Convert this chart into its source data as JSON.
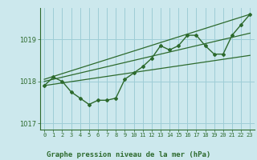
{
  "title": "Graphe pression niveau de la mer (hPa)",
  "background_color": "#cce8ed",
  "grid_color": "#9ecdd6",
  "line_color": "#2d6a2d",
  "xlim": [
    -0.5,
    23.5
  ],
  "ylim": [
    1016.85,
    1019.75
  ],
  "yticks": [
    1017,
    1018,
    1019
  ],
  "xticks": [
    0,
    1,
    2,
    3,
    4,
    5,
    6,
    7,
    8,
    9,
    10,
    11,
    12,
    13,
    14,
    15,
    16,
    17,
    18,
    19,
    20,
    21,
    22,
    23
  ],
  "hours": [
    0,
    1,
    2,
    3,
    4,
    5,
    6,
    7,
    8,
    9,
    10,
    11,
    12,
    13,
    14,
    15,
    16,
    17,
    18,
    19,
    20,
    21,
    22,
    23
  ],
  "pressure": [
    1017.9,
    1018.1,
    1018.0,
    1017.75,
    1017.6,
    1017.45,
    1017.55,
    1017.55,
    1017.6,
    1018.05,
    1018.2,
    1018.35,
    1018.55,
    1018.85,
    1018.75,
    1018.85,
    1019.1,
    1019.1,
    1018.85,
    1018.65,
    1018.65,
    1019.1,
    1019.35,
    1019.6
  ],
  "trend1_x": [
    0,
    23
  ],
  "trend1_y": [
    1017.9,
    1018.62
  ],
  "trend2_x": [
    0,
    23
  ],
  "trend2_y": [
    1018.0,
    1019.15
  ],
  "trend3_x": [
    0,
    23
  ],
  "trend3_y": [
    1018.05,
    1019.6
  ]
}
